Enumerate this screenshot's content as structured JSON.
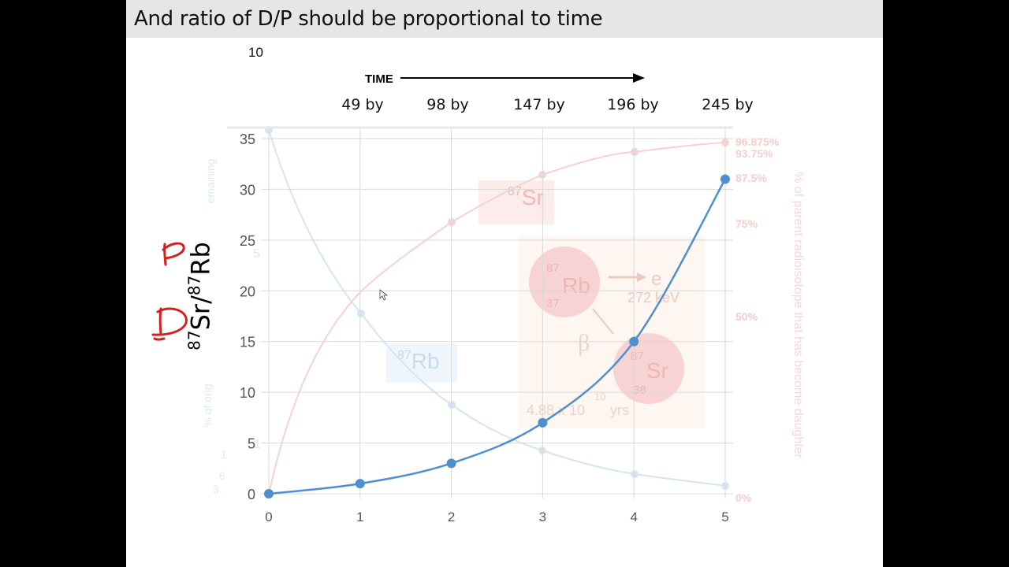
{
  "slide": {
    "title": "And ratio of D/P should be proportional to time",
    "stray_number": "10",
    "time_label": "TIME",
    "time_ticks": [
      "49 by",
      "98 by",
      "147 by",
      "196 by",
      "245 by"
    ],
    "ylabel_base_sr": "Sr/",
    "ylabel_base_rb": "Rb",
    "ylabel_superscript": "87",
    "handwriting": {
      "p": "P",
      "d": "D"
    }
  },
  "background_figure": {
    "left_axis_label": "% of orig",
    "left_axis_label_2": "emaining",
    "right_axis_label": "% of parent radioisotope that has become daughter",
    "right_ticks": [
      "96.875%",
      "93.75%",
      "87.5%",
      "75%",
      "50%",
      "0%"
    ],
    "sr_label": "Sr",
    "rb_label": "Rb",
    "mass_number": "87",
    "decay": {
      "rb_atomic": "37",
      "sr_atomic": "38",
      "electron": "e",
      "energy": "272 keV",
      "beta": "β",
      "half_life": "4.88 x 10",
      "half_life_exp": "10",
      "half_life_unit": "yrs"
    },
    "left_faint_numbers": [
      "5",
      "1",
      "1",
      "6",
      "3."
    ]
  },
  "chart_data": {
    "type": "line",
    "x": [
      0,
      1,
      2,
      3,
      4,
      5
    ],
    "series": [
      {
        "values": [
          0,
          1,
          3,
          7,
          15,
          31
        ]
      }
    ],
    "xticks": [
      "0",
      "1",
      "2",
      "3",
      "4",
      "5"
    ],
    "yticks": [
      "0",
      "5",
      "10",
      "15",
      "20",
      "25",
      "30",
      "35"
    ],
    "xlim": [
      0,
      5
    ],
    "ylim": [
      0,
      35
    ],
    "grid": true,
    "colors": {
      "series": "#4f8fd0",
      "grid": "#d9d9d9",
      "faint_rb": "#c8dcf0",
      "faint_sr": "#f6c8c8"
    }
  }
}
